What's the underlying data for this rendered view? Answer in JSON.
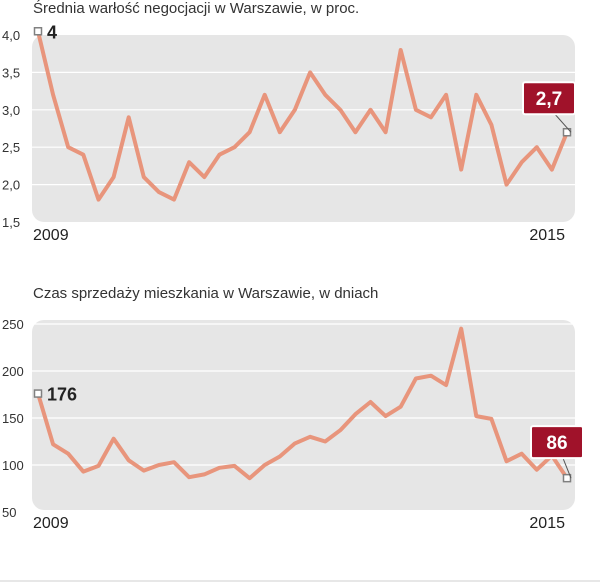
{
  "colors": {
    "line": "#e8957c",
    "plot_bg": "#e6e6e6",
    "badge": "#a0122a",
    "marker": "#808080"
  },
  "chart_data": [
    {
      "type": "line",
      "title": "Średnia warłość negocjacji w Warszawie, w proc.",
      "xlabel": "",
      "ylabel": "",
      "ylim": [
        1.5,
        4.0
      ],
      "yticks": [
        "4,0",
        "3,5",
        "3,0",
        "2,5",
        "2,0",
        "1,5"
      ],
      "ytick_values": [
        4.0,
        3.5,
        3.0,
        2.5,
        2.0,
        1.5
      ],
      "x_start_label": "2009",
      "x_end_label": "2015",
      "first_value_label": "4",
      "last_value_label": "2,7",
      "grid": true,
      "values": [
        4.05,
        3.2,
        2.5,
        2.4,
        1.8,
        2.1,
        2.9,
        2.1,
        1.9,
        1.8,
        2.3,
        2.1,
        2.4,
        2.5,
        2.7,
        3.2,
        2.7,
        3.0,
        3.5,
        3.2,
        3.0,
        2.7,
        3.0,
        2.7,
        3.8,
        3.0,
        2.9,
        3.2,
        2.2,
        3.2,
        2.8,
        2.0,
        2.3,
        2.5,
        2.2,
        2.7
      ]
    },
    {
      "type": "line",
      "title": "Czas sprzedaży mieszkania w Warszawie, w dniach",
      "xlabel": "",
      "ylabel": "",
      "ylim": [
        50,
        250
      ],
      "yticks": [
        "250",
        "200",
        "150",
        "100",
        "50"
      ],
      "ytick_values": [
        250,
        200,
        150,
        100,
        50
      ],
      "x_start_label": "2009",
      "x_end_label": "2015",
      "first_value_label": "176",
      "last_value_label": "86",
      "grid": true,
      "values": [
        176,
        122,
        112,
        93,
        99,
        128,
        105,
        94,
        100,
        103,
        87,
        90,
        97,
        99,
        86,
        100,
        109,
        123,
        130,
        125,
        137,
        154,
        167,
        152,
        162,
        192,
        195,
        185,
        245,
        152,
        149,
        104,
        112,
        95,
        110,
        86
      ]
    }
  ]
}
